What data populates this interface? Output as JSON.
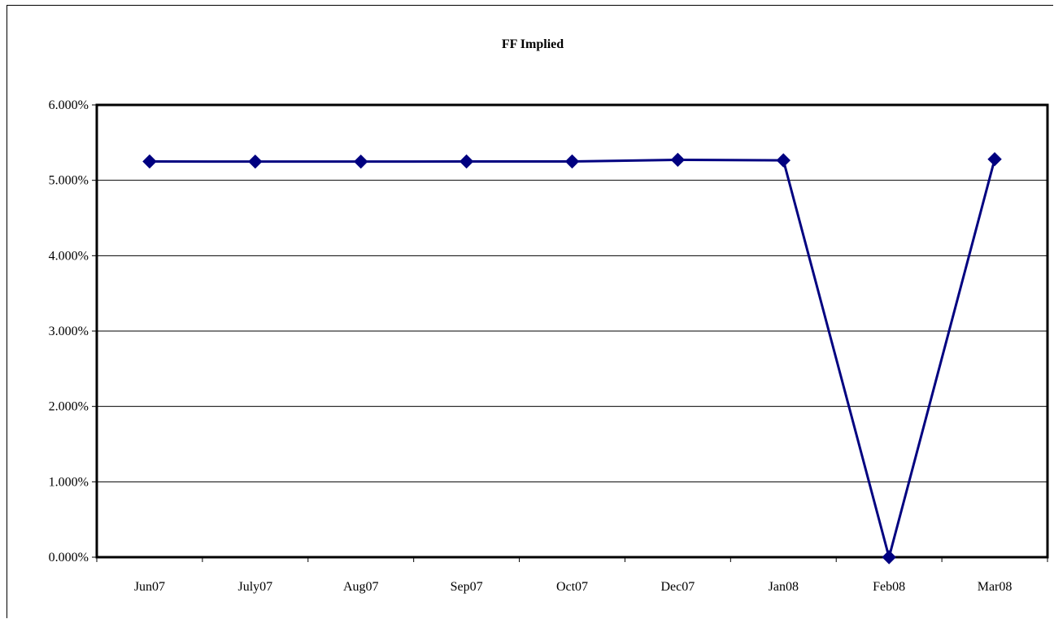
{
  "chart_data": {
    "type": "line",
    "title": "FF Implied",
    "xlabel": "",
    "ylabel": "",
    "categories": [
      "Jun07",
      "July07",
      "Aug07",
      "Sep07",
      "Oct07",
      "Dec07",
      "Jan08",
      "Feb08",
      "Mar08"
    ],
    "series": [
      {
        "values": [
          5.25,
          5.248,
          5.248,
          5.25,
          5.25,
          5.272,
          5.265,
          0.0,
          5.28
        ]
      }
    ],
    "ylim": [
      0,
      6
    ],
    "ytick_step": 1,
    "ytick_format": "0.000%",
    "y_tick_labels": [
      "0.000%",
      "1.000%",
      "2.000%",
      "3.000%",
      "4.000%",
      "5.000%",
      "6.000%"
    ],
    "grid": true,
    "legend": "none",
    "colors": {
      "series_line": "#000080",
      "marker": "#000080",
      "gridline": "#000000",
      "plot_border": "#000000"
    },
    "marker": "diamond-icon"
  }
}
